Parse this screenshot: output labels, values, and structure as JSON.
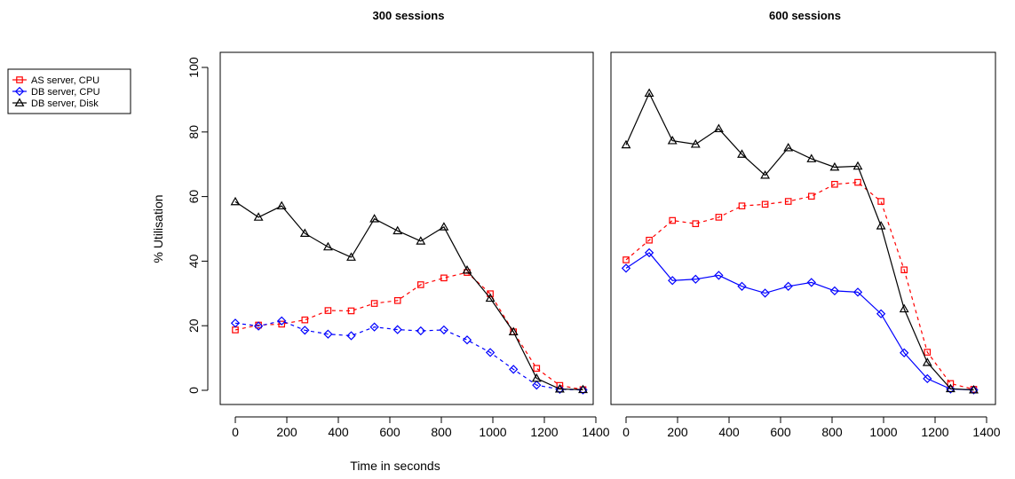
{
  "chart_data": {
    "type": "line",
    "xlabel": "Time in seconds",
    "ylabel": "% Utilisation",
    "xlim": [
      0,
      1400
    ],
    "ylim": [
      0,
      100
    ],
    "xticks": [
      0,
      200,
      400,
      600,
      800,
      1000,
      1200,
      1400
    ],
    "yticks": [
      0,
      20,
      40,
      60,
      80,
      100
    ],
    "grid": false,
    "legend": {
      "placement": "left",
      "entries": [
        {
          "name": "AS server, CPU",
          "color": "#ff0000",
          "marker": "square"
        },
        {
          "name": "DB server, CPU",
          "color": "#0000ff",
          "marker": "diamond"
        },
        {
          "name": "DB server, Disk",
          "color": "#000000",
          "marker": "triangle"
        }
      ]
    },
    "panels": [
      {
        "title": "300 sessions",
        "x": [
          0,
          90,
          180,
          270,
          360,
          450,
          540,
          630,
          720,
          810,
          900,
          990,
          1080,
          1170,
          1260,
          1350
        ],
        "series": [
          {
            "name": "AS server, CPU",
            "color": "#ff0000",
            "marker": "square",
            "dash": "4,4",
            "values": [
              18.7,
              20.2,
              20.5,
              21.8,
              24.7,
              24.6,
              26.9,
              27.8,
              32.7,
              34.8,
              36.5,
              29.9,
              18.1,
              6.8,
              1.5,
              0.2
            ]
          },
          {
            "name": "DB server, CPU",
            "color": "#0000ff",
            "marker": "diamond",
            "dash": "4,4",
            "values": [
              20.8,
              19.9,
              21.5,
              18.6,
              17.4,
              16.9,
              19.6,
              18.8,
              18.4,
              18.7,
              15.6,
              11.7,
              6.5,
              1.6,
              0.3,
              0.1
            ]
          },
          {
            "name": "DB server, Disk",
            "color": "#000000",
            "marker": "triangle",
            "dash": "",
            "values": [
              58.4,
              53.6,
              57.1,
              48.6,
              44.4,
              41.2,
              53.1,
              49.4,
              46.2,
              50.6,
              37.2,
              28.5,
              18.1,
              3.7,
              0.4,
              0.2
            ]
          }
        ]
      },
      {
        "title": "600 sessions",
        "x": [
          0,
          90,
          180,
          270,
          360,
          450,
          540,
          630,
          720,
          810,
          900,
          990,
          1080,
          1170,
          1260,
          1350
        ],
        "series": [
          {
            "name": "AS server, CPU",
            "color": "#ff0000",
            "marker": "square",
            "dash": "4,4",
            "values": [
              40.4,
              46.5,
              52.6,
              51.6,
              53.6,
              57.1,
              57.6,
              58.5,
              60.1,
              63.8,
              64.4,
              58.5,
              37.3,
              11.8,
              2.1,
              0.3
            ]
          },
          {
            "name": "DB server, CPU",
            "color": "#0000ff",
            "marker": "diamond",
            "dash": "",
            "values": [
              37.8,
              42.6,
              34.0,
              34.4,
              35.6,
              32.2,
              30.1,
              32.2,
              33.4,
              30.8,
              30.4,
              23.7,
              11.6,
              3.6,
              0.4,
              0.1
            ]
          },
          {
            "name": "DB server, Disk",
            "color": "#000000",
            "marker": "triangle",
            "dash": "",
            "values": [
              76.0,
              92.0,
              77.3,
              76.2,
              81.0,
              73.1,
              66.6,
              75.1,
              71.7,
              69.1,
              69.4,
              50.9,
              25.2,
              8.6,
              0.5,
              0.1
            ]
          }
        ]
      }
    ]
  }
}
